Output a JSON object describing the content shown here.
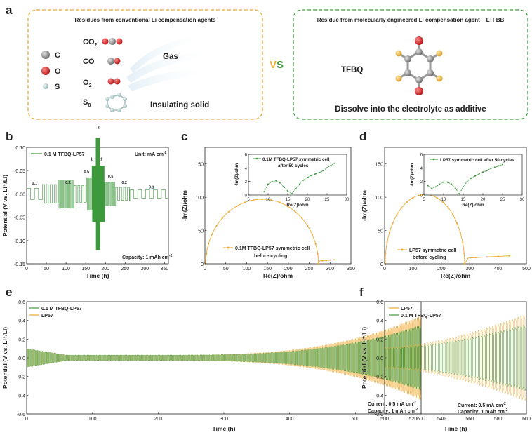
{
  "panel_a": {
    "label": "a",
    "left_box": {
      "title": "Residues from conventional Li compensation agents",
      "legend": [
        {
          "symbol": "C",
          "color": "#8c8c8c"
        },
        {
          "symbol": "O",
          "color": "#d42020"
        },
        {
          "symbol": "S",
          "color": "#a8c4c4"
        }
      ],
      "molecules": [
        {
          "label": "CO",
          "sub": "2"
        },
        {
          "label": "CO",
          "sub": ""
        },
        {
          "label": "O",
          "sub": "2"
        },
        {
          "label": "S",
          "sub": "8"
        }
      ],
      "gas_label": "Gas",
      "solid_label": "Insulating solid",
      "border_color": "#e8a838"
    },
    "vs": {
      "v": "V",
      "s": "S"
    },
    "right_box": {
      "title": "Residue from molecularly engineered Li compensation agent – LTFBB",
      "molecule_label": "TFBQ",
      "caption": "Dissolve into the electrolyte as additive",
      "border_color": "#3ca03c"
    }
  },
  "chart_data": [
    {
      "id": "b",
      "type": "line",
      "title": "",
      "legend": [
        "0.1 M TFBQ-LP57"
      ],
      "unit_note": "Unit: mA cm",
      "unit_sup": "-2",
      "capacity_note": "Capacity: 1 mAh cm",
      "capacity_sup": "-2",
      "xlabel": "Time (h)",
      "ylabel": "Potential (V vs. Li⁺/Li)",
      "xlim": [
        0,
        360
      ],
      "ylim": [
        -0.15,
        0.1
      ],
      "xticks": [
        0,
        50,
        100,
        150,
        200,
        250,
        300,
        350
      ],
      "yticks": [
        0.1,
        0.05,
        0,
        -0.05,
        -0.1,
        -0.15
      ],
      "ytick_labels": [
        "0.10",
        "0.05",
        "0.00",
        "-0.05",
        "-0.10",
        "-0.15"
      ],
      "rate_steps": [
        {
          "t_start": 0,
          "t_end": 40,
          "rate": 0.1,
          "amp": 0.012
        },
        {
          "t_start": 40,
          "t_end": 80,
          "rate": 0.2,
          "amp": 0.02
        },
        {
          "t_start": 80,
          "t_end": 120,
          "rate": 0.5,
          "amp": 0.03
        },
        {
          "t_start": 120,
          "t_end": 152,
          "rate": 0.2,
          "amp": 0.018
        },
        {
          "t_start": 152,
          "t_end": 166,
          "rate": 0.5,
          "amp": 0.035
        },
        {
          "t_start": 166,
          "t_end": 176,
          "rate": 1,
          "amp": 0.06
        },
        {
          "t_start": 176,
          "t_end": 186,
          "rate": 2,
          "amp": 0.12
        },
        {
          "t_start": 186,
          "t_end": 198,
          "rate": 1,
          "amp": 0.06
        },
        {
          "t_start": 198,
          "t_end": 226,
          "rate": 0.5,
          "amp": 0.025
        },
        {
          "t_start": 226,
          "t_end": 262,
          "rate": 0.2,
          "amp": 0.014
        },
        {
          "t_start": 262,
          "t_end": 360,
          "rate": 0.1,
          "amp": 0.009
        }
      ],
      "rate_annotations": [
        {
          "text": "0.1",
          "t": 20,
          "v": 0.02
        },
        {
          "text": "0.2",
          "t": 105,
          "v": 0.022
        },
        {
          "text": "0.5",
          "t": 152,
          "v": 0.045
        },
        {
          "text": "1",
          "t": 165,
          "v": 0.072
        },
        {
          "text": "2",
          "t": 182,
          "v": 0.14
        },
        {
          "text": "1",
          "t": 190,
          "v": 0.072
        },
        {
          "text": "0.5",
          "t": 213,
          "v": 0.035
        },
        {
          "text": "0.2",
          "t": 248,
          "v": 0.022
        },
        {
          "text": "0.1",
          "t": 317,
          "v": 0.012
        }
      ],
      "color": "#3c9a3c"
    },
    {
      "id": "c",
      "type": "line",
      "legend": [
        "0.1M TFBQ-LP57 symmetric cell",
        "before cycling"
      ],
      "xlabel": "Re(Z)/ohm",
      "ylabel": "-Im(Z)/ohm",
      "xlim": [
        0,
        350
      ],
      "ylim": [
        0,
        175
      ],
      "xticks": [
        0,
        50,
        100,
        150,
        200,
        250,
        300,
        350
      ],
      "yticks": [
        0,
        50,
        100,
        150
      ],
      "arc": {
        "z_start": 2,
        "z_end": 272,
        "peak": 97,
        "tail_end": 310,
        "tail_im": 6
      },
      "color": "#f0a830",
      "inset": {
        "legend": [
          "0.1M TFBQ-LP57 symmetric cell",
          "after 50 cycles"
        ],
        "xlabel": "Re(Z)/ohm",
        "ylabel": "-Im(Z)/ohm",
        "xlim": [
          5,
          30
        ],
        "ylim": [
          0,
          6
        ],
        "xticks": [
          5,
          10,
          15,
          20,
          25,
          30
        ],
        "yticks": [
          0,
          2,
          4,
          6
        ],
        "points": [
          [
            9,
            0.5
          ],
          [
            10,
            1.6
          ],
          [
            11,
            2.0
          ],
          [
            12,
            2.1
          ],
          [
            13,
            1.8
          ],
          [
            14,
            1.2
          ],
          [
            15,
            0.6
          ],
          [
            16,
            0.2
          ],
          [
            17,
            0.9
          ],
          [
            18,
            1.6
          ],
          [
            19,
            2.2
          ],
          [
            20,
            2.6
          ],
          [
            21,
            2.9
          ],
          [
            22,
            3.1
          ],
          [
            23,
            3.3
          ],
          [
            24,
            3.6
          ],
          [
            25,
            4.0
          ],
          [
            26,
            4.4
          ],
          [
            27,
            4.7
          ]
        ],
        "color": "#3c9a3c"
      }
    },
    {
      "id": "d",
      "type": "line",
      "legend": [
        "LP57 symmetric cell",
        "before cycling"
      ],
      "xlabel": "Re(Z)/ohm",
      "ylabel": "-Im(Z)/ohm",
      "xlim": [
        0,
        500
      ],
      "ylim": [
        0,
        175
      ],
      "xticks": [
        0,
        100,
        200,
        300,
        400,
        500
      ],
      "yticks": [
        0,
        50,
        100,
        150
      ],
      "arc": {
        "z_start": 2,
        "z_end": 282,
        "peak": 104,
        "tail_end": 440,
        "tail_im": 12
      },
      "color": "#f0a830",
      "inset": {
        "legend": [
          "LP57 symmetric cell after 50 cycles"
        ],
        "xlabel": "Re(Z)/ohm",
        "ylabel": "-Im(Z)/ohm",
        "xlim": [
          5,
          30
        ],
        "ylim": [
          0,
          6
        ],
        "xticks": [
          5,
          10,
          15,
          20,
          25,
          30
        ],
        "yticks": [
          0,
          2,
          4,
          6
        ],
        "points": [
          [
            6,
            1.4
          ],
          [
            7,
            1.0
          ],
          [
            8,
            1.2
          ],
          [
            9,
            1.6
          ],
          [
            10,
            1.9
          ],
          [
            11,
            1.9
          ],
          [
            12,
            1.6
          ],
          [
            13,
            1.0
          ],
          [
            14,
            0.2
          ],
          [
            15,
            1.2
          ],
          [
            16,
            2.0
          ],
          [
            17,
            2.5
          ],
          [
            18,
            2.8
          ],
          [
            19,
            3.1
          ],
          [
            20,
            3.4
          ],
          [
            21,
            3.6
          ],
          [
            22,
            3.9
          ],
          [
            23,
            4.1
          ],
          [
            24,
            4.3
          ],
          [
            25,
            4.5
          ]
        ],
        "color": "#3c9a3c"
      }
    },
    {
      "id": "e",
      "type": "line",
      "legend": [
        "0.1 M TFBQ-LP57",
        "LP57"
      ],
      "current_note": "Current: 0.5 mA cm",
      "current_sup": "-2",
      "capacity_note": "Capacity: 1 mAh cm",
      "capacity_sup": "-2",
      "xlabel": "Time (h)",
      "ylabel": "Potential (V vs. Li⁺/Li)",
      "xlim": [
        0,
        600
      ],
      "ylim": [
        -0.6,
        0.6
      ],
      "xticks": [
        0,
        100,
        200,
        300,
        400,
        500,
        600
      ],
      "yticks": [
        0.6,
        0.4,
        0.2,
        0.0,
        -0.2,
        -0.4,
        -0.6
      ],
      "ytick_labels": [
        "0.6",
        "0.4",
        "0.2",
        "0.0",
        "-0.2",
        "-0.4",
        "-0.6"
      ],
      "envelope": {
        "start_amp": 0.1,
        "min_amp": 0.03,
        "min_t": 200,
        "end_amp_green": 0.35,
        "end_amp_orange": 0.45
      },
      "colors": [
        "#3c9a3c",
        "#f0a830"
      ]
    },
    {
      "id": "f",
      "type": "line",
      "legend": [
        "LP57",
        "0.1 M TFBQ-LP57"
      ],
      "current_note": "Current: 0.5 mA cm",
      "current_sup": "-2",
      "capacity_note": "Capacity: 1 mAh cm",
      "capacity_sup": "-2",
      "xlabel": "Time (h)",
      "ylabel": "Potential (V vs. Li⁺/Li)",
      "xlim": [
        500,
        600
      ],
      "ylim": [
        -0.6,
        0.6
      ],
      "xticks": [
        500,
        520,
        540,
        560,
        580,
        600
      ],
      "yticks": [
        0.6,
        0.4,
        0.2,
        0.0,
        -0.2,
        -0.4,
        -0.6
      ],
      "ytick_labels": [
        "0.6",
        "0.4",
        "0.2",
        "0.0",
        "-0.2",
        "-0.4",
        "-0.6"
      ],
      "envelope": {
        "start_amp_green": 0.1,
        "start_amp_orange": 0.11,
        "end_amp_green": 0.36,
        "end_amp_orange": 0.47
      },
      "colors": [
        "#f0a830",
        "#3c9a3c"
      ]
    }
  ]
}
